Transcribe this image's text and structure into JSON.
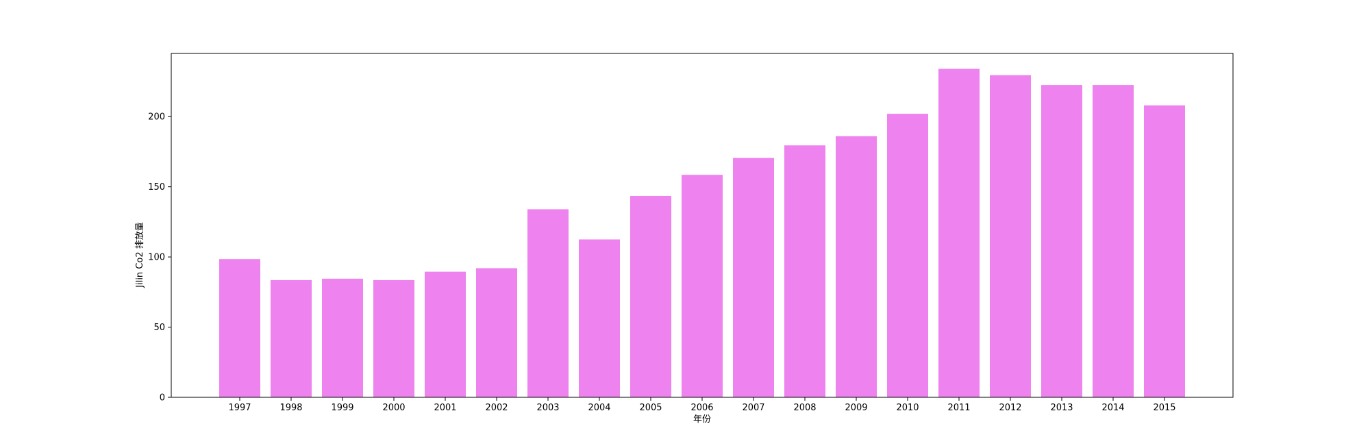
{
  "chart_data": {
    "type": "bar",
    "title": "",
    "xlabel": "年份",
    "ylabel": "Jilin Co2 排放量",
    "categories": [
      "1997",
      "1998",
      "1999",
      "2000",
      "2001",
      "2002",
      "2003",
      "2004",
      "2005",
      "2006",
      "2007",
      "2008",
      "2009",
      "2010",
      "2011",
      "2012",
      "2013",
      "2014",
      "2015"
    ],
    "values": [
      98.5,
      83.5,
      84.5,
      83.5,
      89.5,
      92,
      134,
      112.5,
      143.5,
      158.5,
      170.5,
      179.5,
      186,
      202,
      234,
      229.5,
      222.5,
      222.5,
      208
    ],
    "ylim": [
      0,
      245
    ],
    "yticks": [
      0,
      50,
      100,
      150,
      200
    ],
    "bar_color": "#ee82ee",
    "grid": false,
    "legend": "none"
  }
}
